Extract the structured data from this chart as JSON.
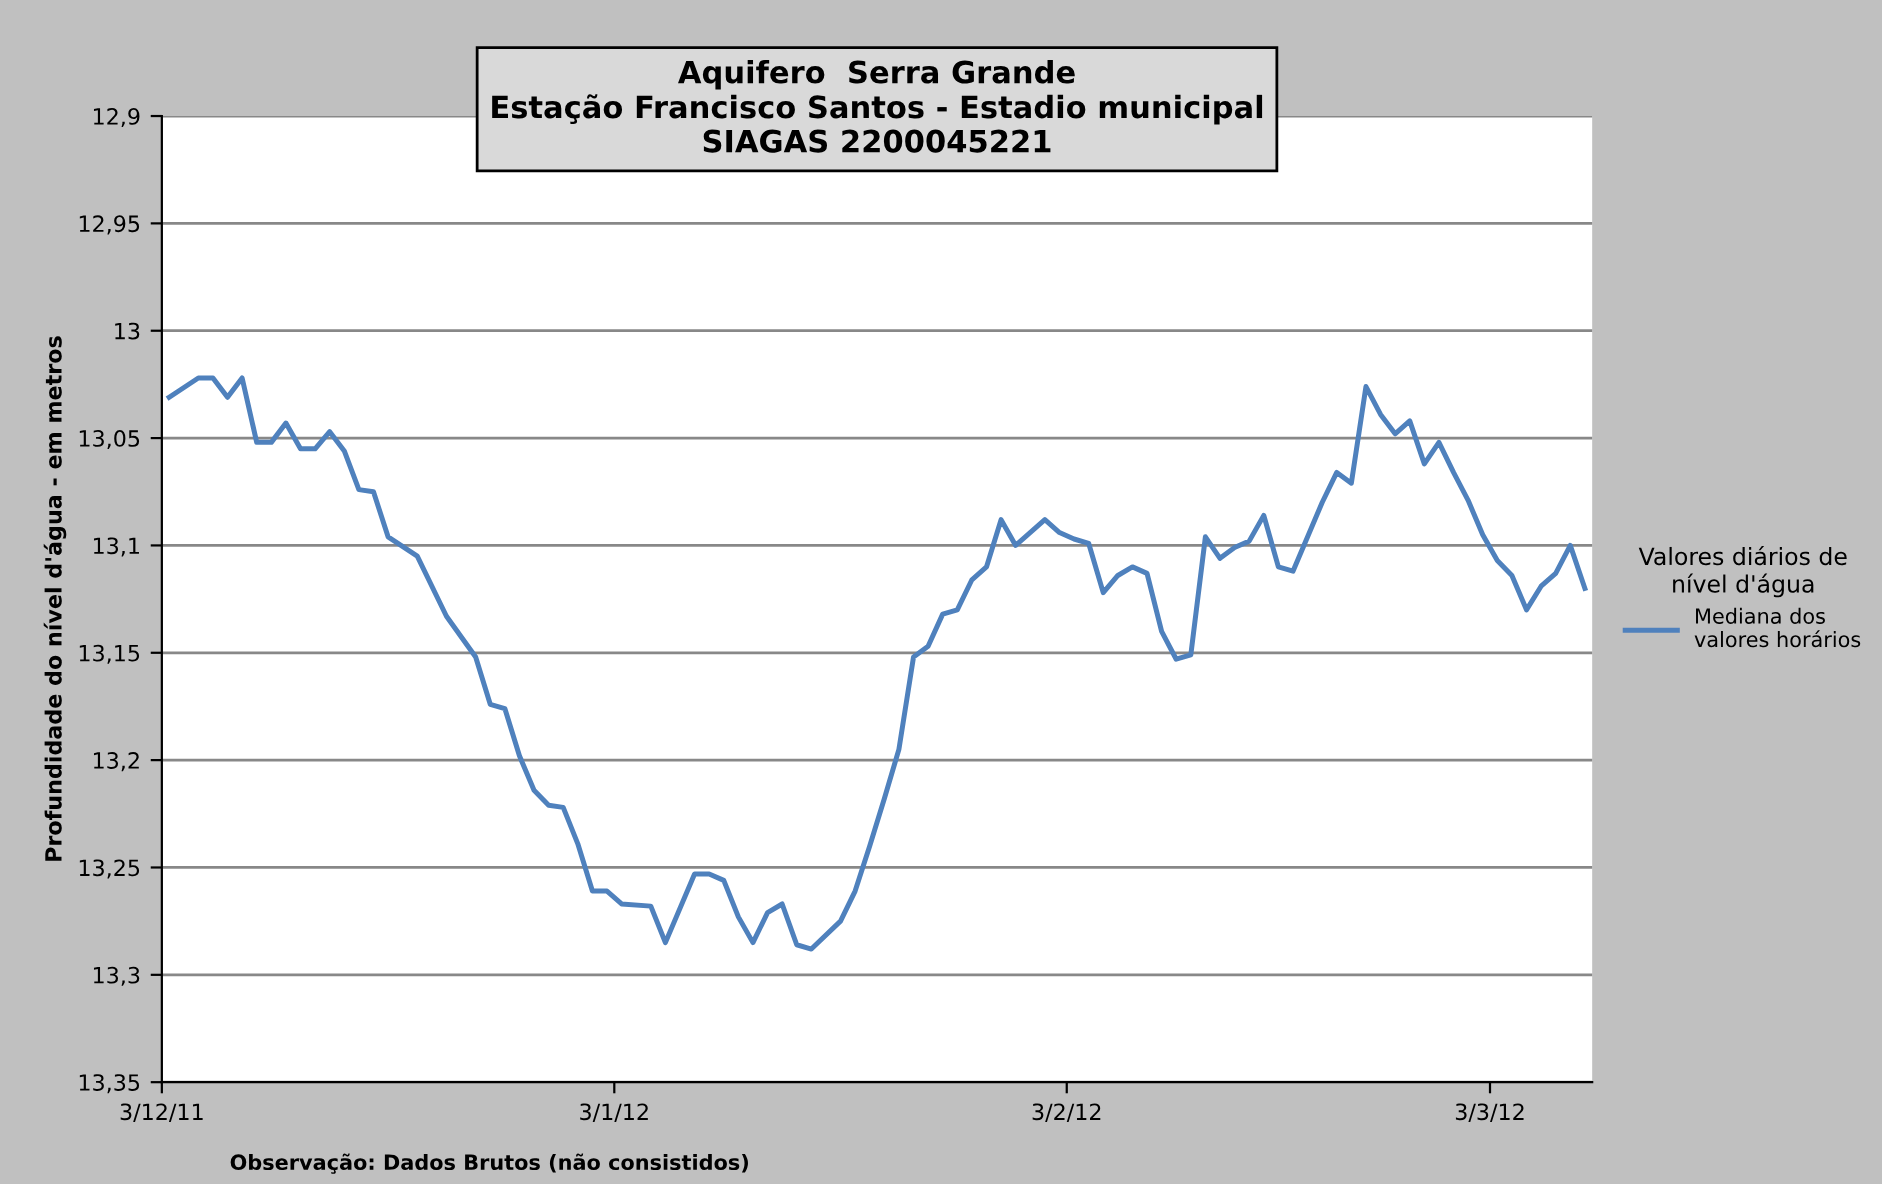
{
  "chart_data": {
    "type": "line",
    "title": "Aquifero  Serra Grande\nEstação Francisco Santos - Estadio municipal\nSIAGAS 2200045221",
    "ylabel": "Profundidade do nível d'água - em metros",
    "legend_title": "Valores diários de\nnível d'água",
    "legend": "right",
    "grid": "y",
    "annotations": [
      "Observação: Dados Brutos (não consistidos)"
    ],
    "xlim": [
      "2011-12-03",
      "2012-03-10"
    ],
    "xticks": [
      {
        "value": "2011-12-03",
        "label": "3/12/11"
      },
      {
        "value": "2012-01-03",
        "label": "3/1/12"
      },
      {
        "value": "2012-02-03",
        "label": "3/2/12"
      },
      {
        "value": "2012-03-03",
        "label": "3/3/12"
      }
    ],
    "ylim": [
      13.35,
      12.9
    ],
    "yticks": [
      {
        "value": 12.9,
        "label": "12,9"
      },
      {
        "value": 12.95,
        "label": "12,95"
      },
      13,
      {
        "value": 13.05,
        "label": "13,05"
      },
      {
        "value": 13.1,
        "label": "13,1"
      },
      {
        "value": 13.15,
        "label": "13,15"
      },
      {
        "value": 13.2,
        "label": "13,2"
      },
      {
        "value": 13.25,
        "label": "13,25"
      },
      {
        "value": 13.3,
        "label": "13,3"
      },
      {
        "value": 13.35,
        "label": "13,35"
      }
    ],
    "series": [
      {
        "name": "Mediana dos\nvalores horários",
        "color": "#4f81bd",
        "x": [
          "2011-12-03T12:00",
          "2011-12-05T12:00",
          "2011-12-06T12:00",
          "2011-12-07T12:00",
          "2011-12-08T12:00",
          "2011-12-09T12:00",
          "2011-12-10T12:00",
          "2011-12-11T12:00",
          "2011-12-12T12:00",
          "2011-12-13T12:00",
          "2011-12-14T12:00",
          "2011-12-15T12:00",
          "2011-12-16T12:00",
          "2011-12-17T12:00",
          "2011-12-18T12:00",
          "2011-12-20T12:00",
          "2011-12-22T12:00",
          "2011-12-24T12:00",
          "2011-12-25T12:00",
          "2011-12-26T12:00",
          "2011-12-27T12:00",
          "2011-12-28T12:00",
          "2011-12-29T12:00",
          "2011-12-30T12:00",
          "2011-12-31T12:00",
          "2012-01-01T12:00",
          "2012-01-02T12:00",
          "2012-01-03T12:00",
          "2012-01-05T12:00",
          "2012-01-06T12:00",
          "2012-01-08T12:00",
          "2012-01-09T12:00",
          "2012-01-10T12:00",
          "2012-01-11T12:00",
          "2012-01-12T12:00",
          "2012-01-13T12:00",
          "2012-01-14T12:00",
          "2012-01-15T12:00",
          "2012-01-16T12:00",
          "2012-01-18T12:00",
          "2012-01-19T12:00",
          "2012-01-20T12:00",
          "2012-01-21T12:00",
          "2012-01-22T12:00",
          "2012-01-23T12:00",
          "2012-01-24T12:00",
          "2012-01-25T12:00",
          "2012-01-26T12:00",
          "2012-01-27T12:00",
          "2012-01-28T12:00",
          "2012-01-29T12:00",
          "2012-01-30T12:00",
          "2012-02-01T12:00",
          "2012-02-02T12:00",
          "2012-02-03T12:00",
          "2012-02-04T12:00",
          "2012-02-05T12:00",
          "2012-02-06T12:00",
          "2012-02-07T12:00",
          "2012-02-08T12:00",
          "2012-02-09T12:00",
          "2012-02-10T12:00",
          "2012-02-11T12:00",
          "2012-02-12T12:00",
          "2012-02-13T12:00",
          "2012-02-14T12:00",
          "2012-02-15T12:00",
          "2012-02-16T12:00",
          "2012-02-17T12:00",
          "2012-02-18T12:00",
          "2012-02-20T12:00",
          "2012-02-21T12:00",
          "2012-02-22T12:00",
          "2012-02-23T12:00",
          "2012-02-24T12:00",
          "2012-02-25T12:00",
          "2012-02-26T12:00",
          "2012-02-27T12:00",
          "2012-02-28T12:00",
          "2012-02-29T12:00",
          "2012-03-01T12:00",
          "2012-03-02T12:00",
          "2012-03-03T12:00",
          "2012-03-04T12:00",
          "2012-03-05T12:00",
          "2012-03-06T12:00",
          "2012-03-07T12:00",
          "2012-03-08T12:00",
          "2012-03-09T12:00"
        ],
        "values": [
          13.031,
          13.022,
          13.022,
          13.031,
          13.022,
          13.052,
          13.052,
          13.043,
          13.055,
          13.055,
          13.047,
          13.056,
          13.074,
          13.075,
          13.096,
          13.105,
          13.133,
          13.152,
          13.174,
          13.176,
          13.198,
          13.214,
          13.221,
          13.222,
          13.239,
          13.261,
          13.261,
          13.267,
          13.268,
          13.285,
          13.253,
          13.253,
          13.256,
          13.273,
          13.285,
          13.271,
          13.267,
          13.286,
          13.288,
          13.275,
          13.261,
          13.24,
          13.218,
          13.195,
          13.152,
          13.147,
          13.132,
          13.13,
          13.116,
          13.11,
          13.088,
          13.1,
          13.088,
          13.094,
          13.097,
          13.099,
          13.122,
          13.114,
          13.11,
          13.113,
          13.14,
          13.153,
          13.151,
          13.096,
          13.106,
          13.101,
          13.098,
          13.086,
          13.11,
          13.112,
          13.08,
          13.066,
          13.071,
          13.026,
          13.039,
          13.048,
          13.042,
          13.062,
          13.052,
          13.066,
          13.079,
          13.095,
          13.107,
          13.114,
          13.13,
          13.119,
          13.113,
          13.1,
          13.12
        ]
      }
    ]
  }
}
